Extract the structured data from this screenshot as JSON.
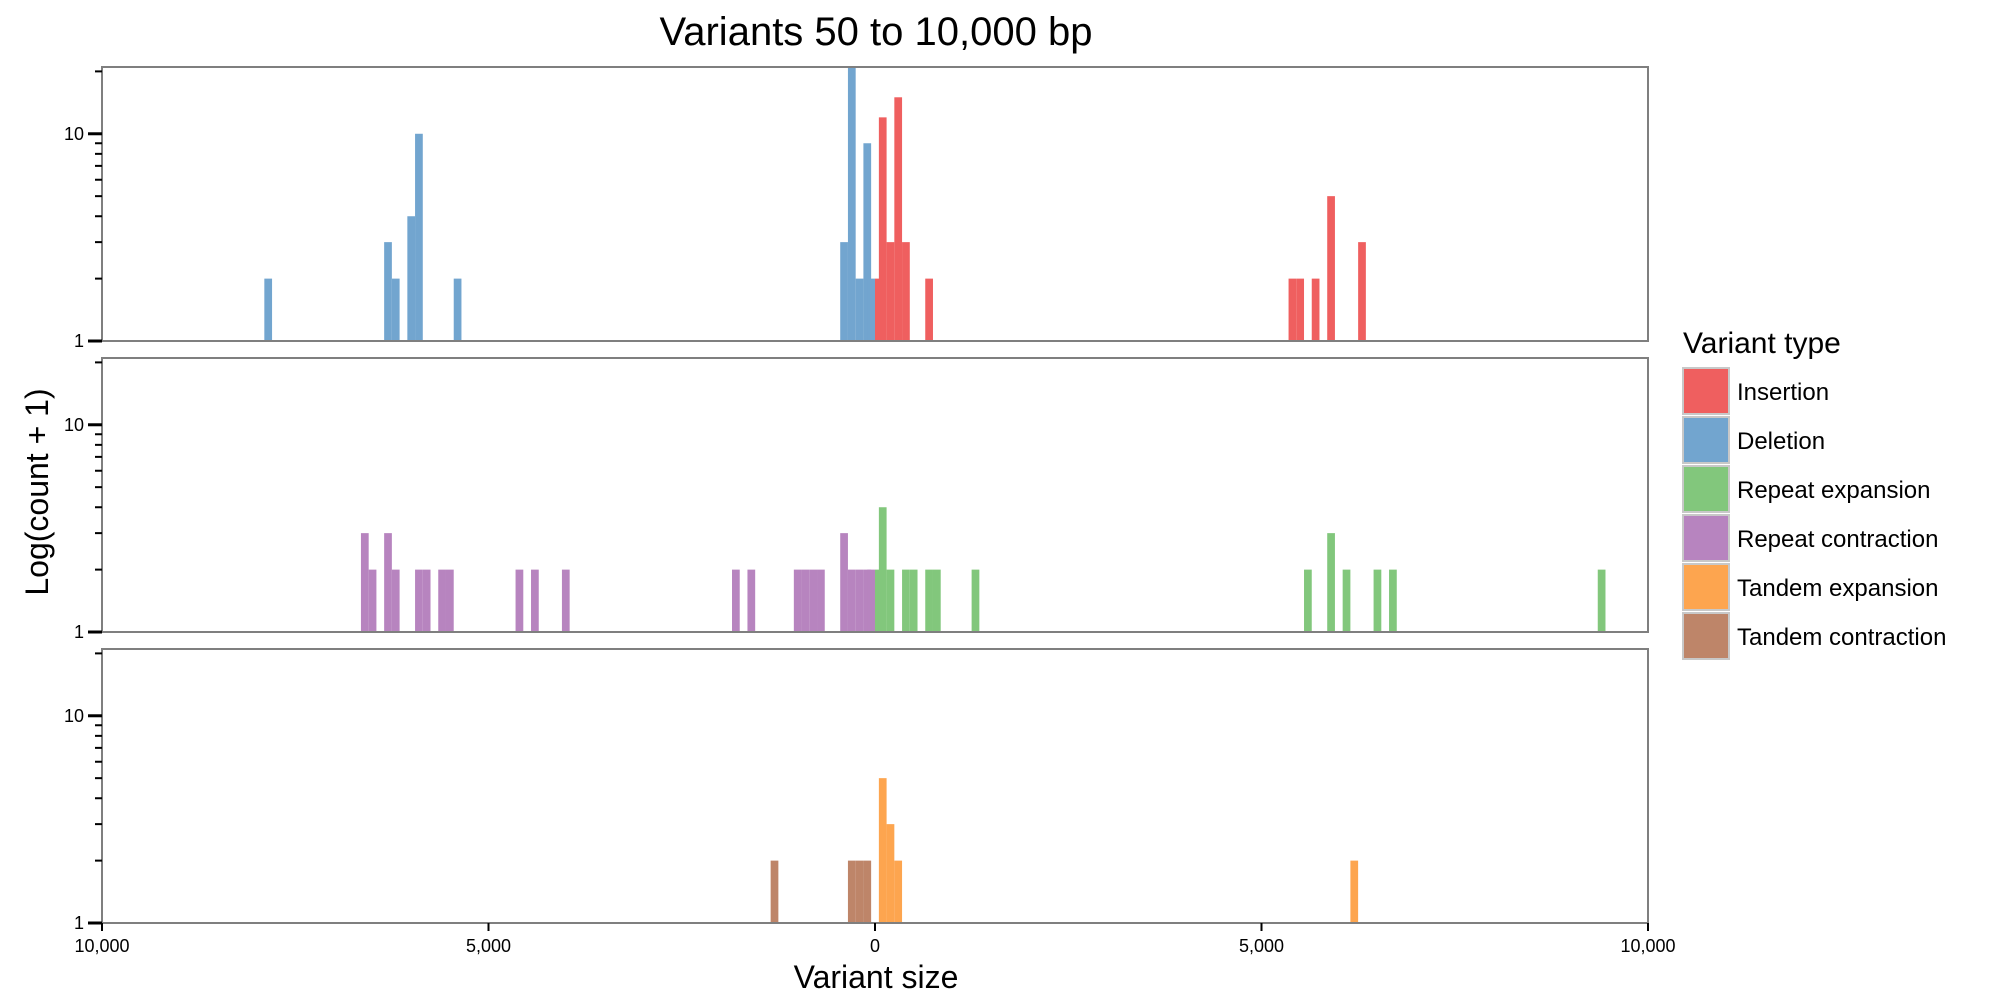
{
  "chart_data": {
    "type": "bar",
    "title": "Variants 50 to 10,000 bp",
    "xlabel": "Variant size",
    "ylabel": "Log(count + 1)",
    "xlim": [
      -10000,
      10000
    ],
    "ylim": [
      1,
      21
    ],
    "y_scale": "log",
    "x_ticks": [
      -10000,
      -5000,
      0,
      5000,
      10000
    ],
    "x_tick_labels": [
      "10,000",
      "5,000",
      "0",
      "5,000",
      "10,000"
    ],
    "y_ticks": [
      1,
      10
    ],
    "y_tick_labels": [
      "1",
      "10"
    ],
    "bin_width": 100,
    "legend": {
      "title": "Variant type",
      "position": "right",
      "entries": [
        {
          "name": "Insertion",
          "color": "#EF5F5F"
        },
        {
          "name": "Deletion",
          "color": "#72A5CF"
        },
        {
          "name": "Repeat expansion",
          "color": "#82C77C"
        },
        {
          "name": "Repeat contraction",
          "color": "#B784BF"
        },
        {
          "name": "Tandem expansion",
          "color": "#FDA54F"
        },
        {
          "name": "Tandem contraction",
          "color": "#BE8569"
        }
      ]
    },
    "panels": [
      {
        "series": [
          {
            "name": "Deletion",
            "color": "#72A5CF",
            "bins": [
              [
                -7850,
                2
              ],
              [
                -6300,
                3
              ],
              [
                -6200,
                2
              ],
              [
                -6000,
                4
              ],
              [
                -5900,
                10
              ],
              [
                -5400,
                2
              ],
              [
                -400,
                3
              ],
              [
                -300,
                21
              ],
              [
                -200,
                2
              ],
              [
                -100,
                9
              ],
              [
                -50,
                2
              ]
            ]
          },
          {
            "name": "Insertion",
            "color": "#EF5F5F",
            "bins": [
              [
                50,
                2
              ],
              [
                100,
                12
              ],
              [
                200,
                3
              ],
              [
                300,
                15
              ],
              [
                400,
                3
              ],
              [
                700,
                2
              ],
              [
                5400,
                2
              ],
              [
                5500,
                2
              ],
              [
                5700,
                2
              ],
              [
                5900,
                5
              ],
              [
                6300,
                3
              ]
            ]
          }
        ]
      },
      {
        "series": [
          {
            "name": "Repeat contraction",
            "color": "#B784BF",
            "bins": [
              [
                -6600,
                3
              ],
              [
                -6500,
                2
              ],
              [
                -6300,
                3
              ],
              [
                -6200,
                2
              ],
              [
                -5900,
                2
              ],
              [
                -5800,
                2
              ],
              [
                -5600,
                2
              ],
              [
                -5500,
                2
              ],
              [
                -4600,
                2
              ],
              [
                -4400,
                2
              ],
              [
                -4000,
                2
              ],
              [
                -1800,
                2
              ],
              [
                -1600,
                2
              ],
              [
                -1000,
                2
              ],
              [
                -900,
                2
              ],
              [
                -800,
                2
              ],
              [
                -700,
                2
              ],
              [
                -400,
                3
              ],
              [
                -300,
                2
              ],
              [
                -200,
                2
              ],
              [
                -100,
                2
              ],
              [
                -50,
                2
              ]
            ]
          },
          {
            "name": "Repeat expansion",
            "color": "#82C77C",
            "bins": [
              [
                50,
                2
              ],
              [
                100,
                4
              ],
              [
                200,
                2
              ],
              [
                400,
                2
              ],
              [
                500,
                2
              ],
              [
                700,
                2
              ],
              [
                800,
                2
              ],
              [
                1300,
                2
              ],
              [
                5600,
                2
              ],
              [
                5900,
                3
              ],
              [
                6100,
                2
              ],
              [
                6500,
                2
              ],
              [
                6700,
                2
              ],
              [
                9400,
                2
              ]
            ]
          }
        ]
      },
      {
        "series": [
          {
            "name": "Tandem contraction",
            "color": "#BE8569",
            "bins": [
              [
                -1300,
                2
              ],
              [
                -300,
                2
              ],
              [
                -200,
                2
              ],
              [
                -100,
                2
              ]
            ]
          },
          {
            "name": "Tandem expansion",
            "color": "#FDA54F",
            "bins": [
              [
                100,
                5
              ],
              [
                200,
                3
              ],
              [
                300,
                2
              ],
              [
                6200,
                2
              ]
            ]
          }
        ]
      }
    ]
  }
}
